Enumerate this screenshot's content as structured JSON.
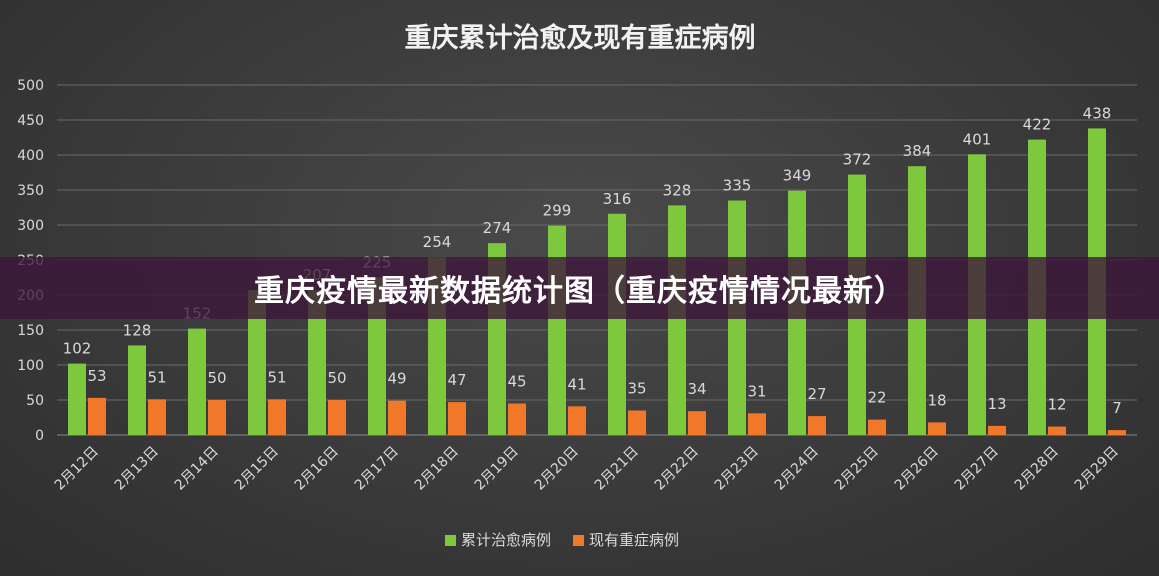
{
  "overlay_banner": {
    "text": "重庆疫情最新数据统计图（重庆疫情情况最新）"
  },
  "colors": {
    "series_green": "#7dc83c",
    "series_orange": "#f07828",
    "text": "#d9d9d9",
    "grid": "#6a6a6a",
    "title": "#f2f2f2"
  },
  "chart_data": {
    "type": "bar",
    "title": "重庆累计治愈及现有重症病例",
    "xlabel": "",
    "ylabel": "",
    "ylim": [
      0,
      500
    ],
    "yticks": [
      0,
      50,
      100,
      150,
      200,
      250,
      300,
      350,
      400,
      450,
      500
    ],
    "grid": true,
    "legend_position": "bottom",
    "categories": [
      "2月12日",
      "2月13日",
      "2月14日",
      "2月15日",
      "2月16日",
      "2月17日",
      "2月18日",
      "2月19日",
      "2月20日",
      "2月21日",
      "2月22日",
      "2月23日",
      "2月24日",
      "2月25日",
      "2月26日",
      "2月27日",
      "2月28日",
      "2月29日"
    ],
    "series": [
      {
        "name": "累计治愈病例",
        "color": "#7dc83c",
        "values": [
          102,
          128,
          152,
          207,
          207,
          225,
          254,
          274,
          299,
          316,
          328,
          335,
          349,
          372,
          384,
          401,
          422,
          438
        ],
        "labels": [
          "102",
          "128",
          "152",
          "",
          "207",
          "225",
          "254",
          "274",
          "299",
          "316",
          "328",
          "335",
          "349",
          "372",
          "384",
          "401",
          "422",
          "438"
        ]
      },
      {
        "name": "现有重症病例",
        "color": "#f07828",
        "values": [
          53,
          51,
          50,
          51,
          50,
          49,
          47,
          45,
          41,
          35,
          34,
          31,
          27,
          22,
          18,
          13,
          12,
          7
        ],
        "labels": [
          "53",
          "51",
          "50",
          "51",
          "50",
          "49",
          "47",
          "45",
          "41",
          "35",
          "34",
          "31",
          "27",
          "22",
          "18",
          "13",
          "12",
          "7"
        ]
      }
    ]
  }
}
